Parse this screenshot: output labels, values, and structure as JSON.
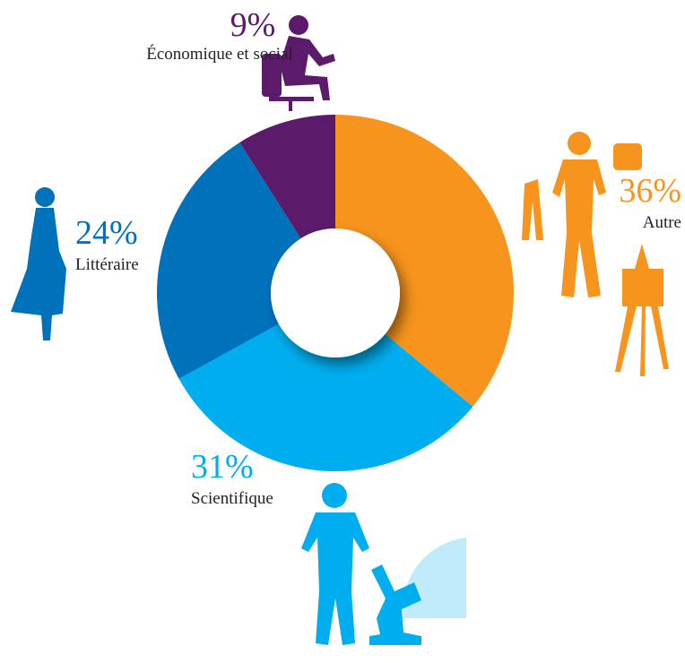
{
  "chart_data": {
    "type": "donut",
    "categories": [
      "Autre",
      "Scientifique",
      "Littéraire",
      "Économique et social"
    ],
    "values": [
      36,
      31,
      24,
      9
    ],
    "value_labels": [
      "36%",
      "31%",
      "24%",
      "9%"
    ],
    "colors": [
      "#f7941d",
      "#00aeef",
      "#0072bc",
      "#5c1a6b"
    ]
  }
}
